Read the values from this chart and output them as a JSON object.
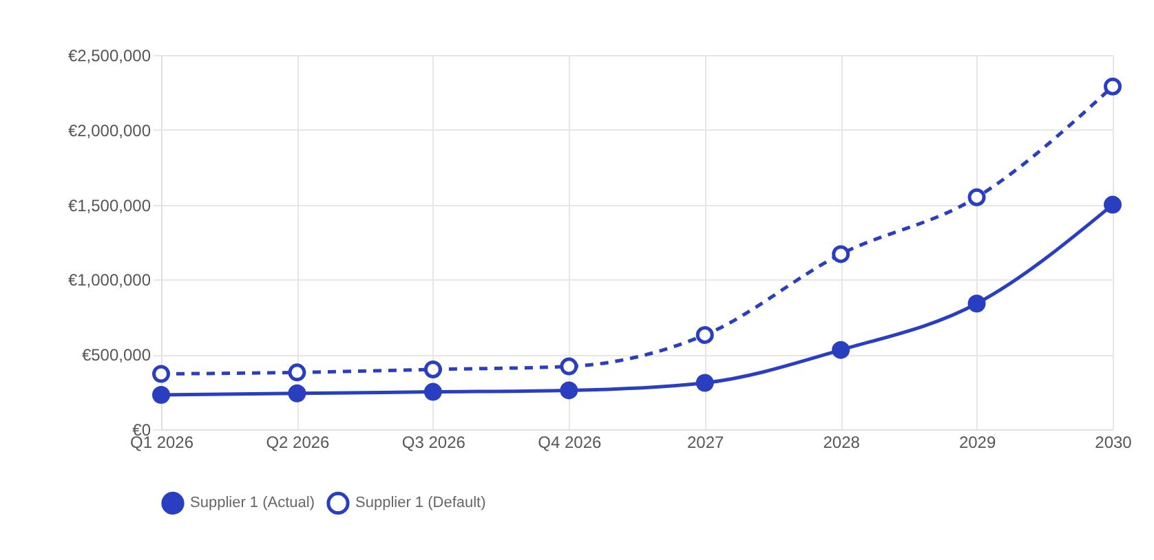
{
  "chart_data": {
    "type": "line",
    "categories": [
      "Q1 2026",
      "Q2 2026",
      "Q3 2026",
      "Q4 2026",
      "2027",
      "2028",
      "2029",
      "2030"
    ],
    "series": [
      {
        "name": "Supplier 1 (Actual)",
        "color": "#2a3fbf",
        "line_style": "solid",
        "values": [
          230000,
          240000,
          250000,
          260000,
          310000,
          530000,
          840000,
          1500000
        ]
      },
      {
        "name": "Supplier 1 (Default)",
        "color": "#2a3fbf",
        "line_style": "dashed",
        "values": [
          370000,
          380000,
          400000,
          420000,
          630000,
          1170000,
          1550000,
          2290000
        ]
      }
    ],
    "ylim": [
      0,
      2500000
    ],
    "yticks": [
      {
        "value": 0,
        "label": "€0"
      },
      {
        "value": 500000,
        "label": "€500,000"
      },
      {
        "value": 1000000,
        "label": "€1,000,000"
      },
      {
        "value": 1500000,
        "label": "€1,500,000"
      },
      {
        "value": 2000000,
        "label": "€2,000,000"
      },
      {
        "value": 2500000,
        "label": "€2,500,000"
      }
    ],
    "grid": true,
    "legend": "bottom",
    "marker": "circle"
  }
}
